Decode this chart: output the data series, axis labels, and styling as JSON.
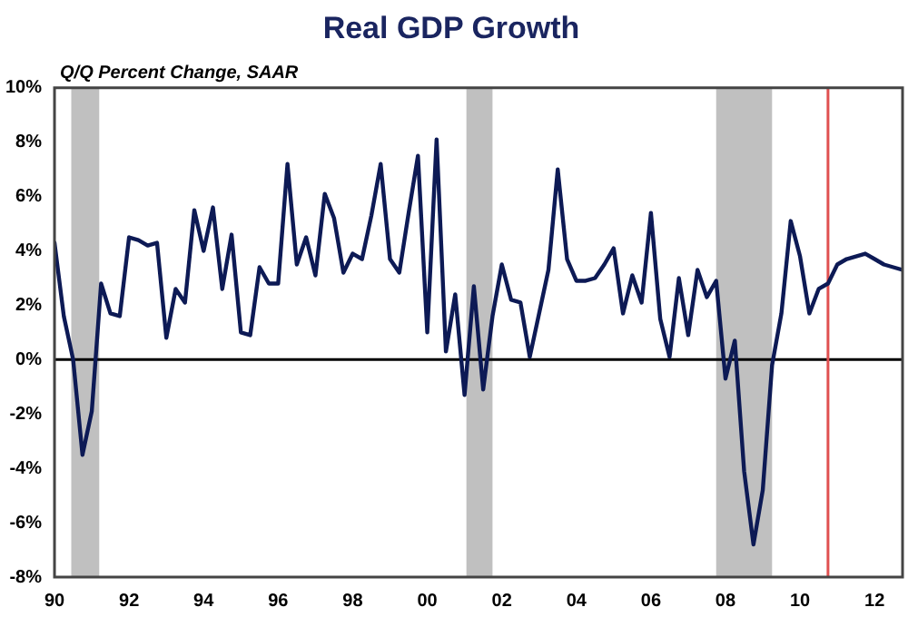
{
  "chart_data": {
    "type": "line",
    "title": "Real GDP Growth",
    "ylabel": "Q/Q Percent Change, SAAR",
    "x": [
      1990,
      1990.25,
      1990.5,
      1990.75,
      1991,
      1991.25,
      1991.5,
      1991.75,
      1992,
      1992.25,
      1992.5,
      1992.75,
      1993,
      1993.25,
      1993.5,
      1993.75,
      1994,
      1994.25,
      1994.5,
      1994.75,
      1995,
      1995.25,
      1995.5,
      1995.75,
      1996,
      1996.25,
      1996.5,
      1996.75,
      1997,
      1997.25,
      1997.5,
      1997.75,
      1998,
      1998.25,
      1998.5,
      1998.75,
      1999,
      1999.25,
      1999.5,
      1999.75,
      2000,
      2000.25,
      2000.5,
      2000.75,
      2001,
      2001.25,
      2001.5,
      2001.75,
      2002,
      2002.25,
      2002.5,
      2002.75,
      2003,
      2003.25,
      2003.5,
      2003.75,
      2004,
      2004.25,
      2004.5,
      2004.75,
      2005,
      2005.25,
      2005.5,
      2005.75,
      2006,
      2006.25,
      2006.5,
      2006.75,
      2007,
      2007.25,
      2007.5,
      2007.75,
      2008,
      2008.25,
      2008.5,
      2008.75,
      2009,
      2009.25,
      2009.5,
      2009.75,
      2010,
      2010.25,
      2010.5,
      2010.75,
      2011,
      2011.25,
      2011.5,
      2011.75,
      2012,
      2012.25,
      2012.5,
      2012.75
    ],
    "series": [
      {
        "color": "#0d1a55",
        "values": [
          4.3,
          1.6,
          0.0,
          -3.5,
          -1.9,
          2.8,
          1.7,
          1.6,
          4.5,
          4.4,
          4.2,
          4.3,
          0.8,
          2.6,
          2.1,
          5.5,
          4.0,
          5.6,
          2.6,
          4.6,
          1.0,
          0.9,
          3.4,
          2.8,
          2.8,
          7.2,
          3.5,
          4.5,
          3.1,
          6.1,
          5.2,
          3.2,
          3.9,
          3.7,
          5.3,
          7.2,
          3.7,
          3.2,
          5.4,
          7.5,
          1.0,
          8.1,
          0.3,
          2.4,
          -1.3,
          2.7,
          -1.1,
          1.6,
          3.5,
          2.2,
          2.1,
          0.1,
          1.7,
          3.3,
          7.0,
          3.7,
          2.9,
          2.9,
          3.0,
          3.5,
          4.1,
          1.7,
          3.1,
          2.1,
          5.4,
          1.5,
          0.1,
          3.0,
          0.9,
          3.3,
          2.3,
          2.9,
          -0.7,
          0.7,
          -4.1,
          -6.8,
          -4.8,
          -0.2,
          1.7,
          5.1,
          3.8,
          1.7,
          2.6,
          2.8,
          3.5,
          3.7,
          3.8,
          3.9,
          3.7,
          3.5,
          3.4,
          3.3
        ]
      }
    ],
    "xlim": [
      1990,
      2012.75
    ],
    "xticks": [
      {
        "value": 1990,
        "label": "90"
      },
      {
        "value": 1992,
        "label": "92"
      },
      {
        "value": 1994,
        "label": "94"
      },
      {
        "value": 1996,
        "label": "96"
      },
      {
        "value": 1998,
        "label": "98"
      },
      {
        "value": 2000,
        "label": "00"
      },
      {
        "value": 2002,
        "label": "02"
      },
      {
        "value": 2004,
        "label": "04"
      },
      {
        "value": 2006,
        "label": "06"
      },
      {
        "value": 2008,
        "label": "08"
      },
      {
        "value": 2010,
        "label": "10"
      },
      {
        "value": 2012,
        "label": "12"
      }
    ],
    "ylim": [
      -8,
      10
    ],
    "yticks": [
      {
        "value": -8,
        "label": "-8%"
      },
      {
        "value": -6,
        "label": "-6%"
      },
      {
        "value": -4,
        "label": "-4%"
      },
      {
        "value": -2,
        "label": "-2%"
      },
      {
        "value": 0,
        "label": "0%"
      },
      {
        "value": 2,
        "label": "2%"
      },
      {
        "value": 4,
        "label": "4%"
      },
      {
        "value": 6,
        "label": "6%"
      },
      {
        "value": 8,
        "label": "8%"
      },
      {
        "value": 10,
        "label": "10%"
      }
    ],
    "bands": [
      {
        "axis": "x",
        "from": 1990.45,
        "to": 1991.2,
        "color": "#c0c0c0"
      },
      {
        "axis": "x",
        "from": 2001.05,
        "to": 2001.75,
        "color": "#c0c0c0"
      },
      {
        "axis": "x",
        "from": 2007.75,
        "to": 2009.25,
        "color": "#c0c0c0"
      }
    ],
    "ref_lines": [
      {
        "axis": "y",
        "value": 0,
        "color": "#000000"
      },
      {
        "axis": "x",
        "value": 2010.75,
        "color": "#e05050"
      }
    ],
    "grid": false,
    "legend": false,
    "marker": "none",
    "line_style": "solid"
  }
}
